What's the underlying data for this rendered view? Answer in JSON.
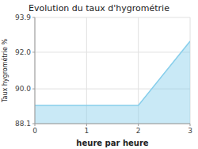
{
  "chart_data": {
    "type": "area",
    "title": "Evolution du taux d'hygrométrie",
    "xlabel": "heure par heure",
    "ylabel": "Taux hygrométrie %",
    "x": [
      0,
      2,
      3
    ],
    "values": [
      89.1,
      89.1,
      92.6
    ],
    "color": "#87ceeb",
    "xlim": [
      0,
      3
    ],
    "ylim": [
      88.1,
      93.9
    ],
    "xticks": [
      0,
      1,
      2,
      3
    ],
    "yticks": [
      88.1,
      {
        "value": 90.0,
        "label": "90.0"
      },
      {
        "value": 92.0,
        "label": "92.0"
      },
      93.9
    ],
    "grid": true
  }
}
